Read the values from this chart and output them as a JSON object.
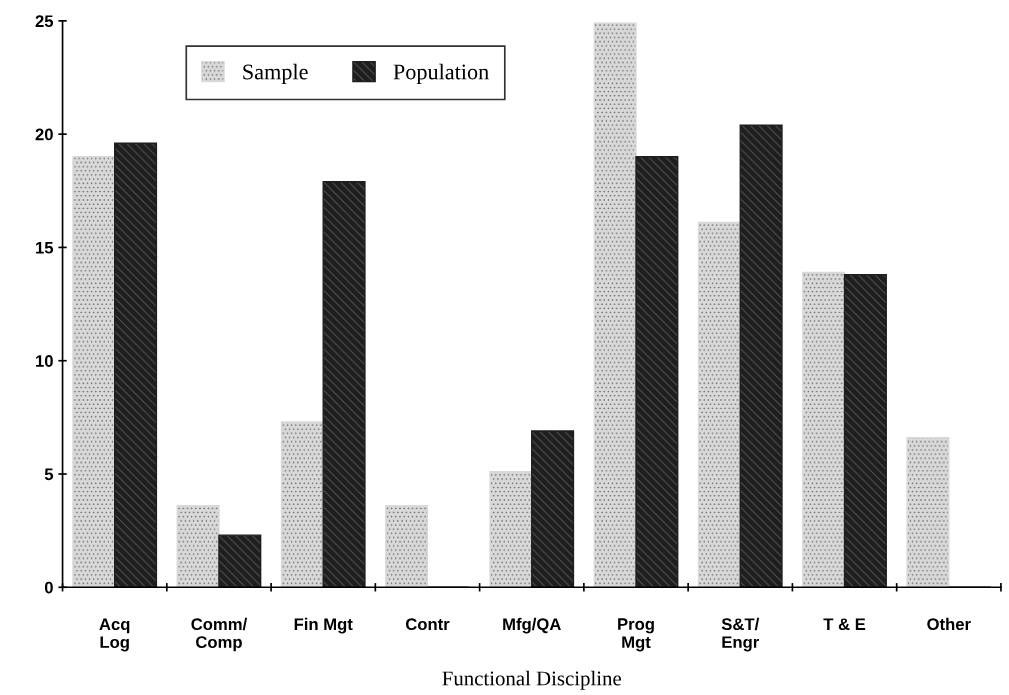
{
  "chart_data": {
    "type": "bar",
    "xlabel": "Functional Discipline",
    "categories": [
      "Acq\nLog",
      "Comm/\nComp",
      "Fin Mgt",
      "Contr",
      "Mfg/QA",
      "Prog\nMgt",
      "S&T/\nEngr",
      "T & E",
      "Other"
    ],
    "series": [
      {
        "name": "Sample",
        "color": "#d9d9d9",
        "values": [
          19.0,
          3.6,
          7.3,
          3.6,
          5.1,
          24.9,
          16.1,
          13.9,
          6.6
        ]
      },
      {
        "name": "Population",
        "color": "#1e1e1e",
        "values": [
          19.6,
          2.3,
          17.9,
          0,
          6.9,
          19.0,
          20.4,
          13.8,
          0
        ]
      }
    ],
    "ylim": [
      0,
      25
    ],
    "yticks": [
      0,
      5,
      10,
      15,
      20,
      25
    ],
    "grid": false,
    "legend": "top"
  }
}
